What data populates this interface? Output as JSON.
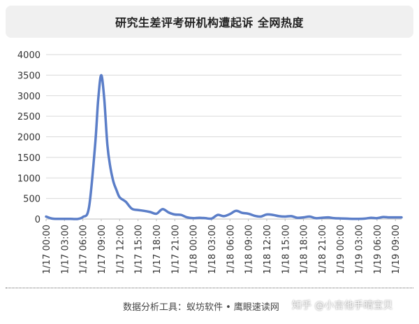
{
  "chart_data": {
    "type": "line",
    "title": "研究生差评考研机构遭起诉 全网热度",
    "xlabel": "",
    "ylabel": "",
    "ylim": [
      0,
      4000
    ],
    "yticks": [
      0,
      500,
      1000,
      1500,
      2000,
      2500,
      3000,
      3500,
      4000
    ],
    "grid": true,
    "legend": "none",
    "line_color": "#5b7ec8",
    "x_tick_labels": [
      "1/17 00:00",
      "1/17 03:00",
      "1/17 06:00",
      "1/17 09:00",
      "1/17 12:00",
      "1/17 15:00",
      "1/17 18:00",
      "1/17 21:00",
      "1/18 00:00",
      "1/18 03:00",
      "1/18 06:00",
      "1/18 09:00",
      "1/18 12:00",
      "1/18 15:00",
      "1/18 18:00",
      "1/18 21:00",
      "1/19 00:00",
      "1/19 03:00",
      "1/19 06:00",
      "1/19 09:00"
    ],
    "x_hours": [
      0,
      1,
      2,
      3,
      4,
      5,
      6,
      7,
      8,
      8.5,
      9,
      9.5,
      10,
      10.5,
      11,
      11.5,
      12,
      13,
      14,
      15,
      16,
      17,
      18,
      19,
      20,
      21,
      22,
      23,
      24,
      25,
      26,
      27,
      28,
      29,
      30,
      31,
      32,
      33,
      34,
      35,
      36,
      37,
      38,
      39,
      40,
      41,
      42,
      43,
      44,
      45,
      46,
      47,
      48,
      49,
      50,
      51,
      52,
      53,
      54,
      55,
      56,
      57,
      58
    ],
    "values": [
      60,
      10,
      5,
      5,
      5,
      0,
      50,
      280,
      1800,
      2900,
      3500,
      2900,
      1800,
      1250,
      900,
      700,
      530,
      420,
      250,
      220,
      200,
      170,
      130,
      240,
      160,
      110,
      100,
      40,
      20,
      30,
      20,
      10,
      100,
      70,
      120,
      200,
      150,
      130,
      80,
      60,
      110,
      100,
      70,
      60,
      70,
      30,
      40,
      60,
      20,
      30,
      40,
      20,
      15,
      10,
      5,
      5,
      10,
      30,
      20,
      50,
      40,
      40,
      40
    ]
  },
  "footer": {
    "source": "数据分析工具：蚁坊软件 • 鹰眼速读网",
    "watermark": "知乎 @小吉他手晴宝贝"
  }
}
